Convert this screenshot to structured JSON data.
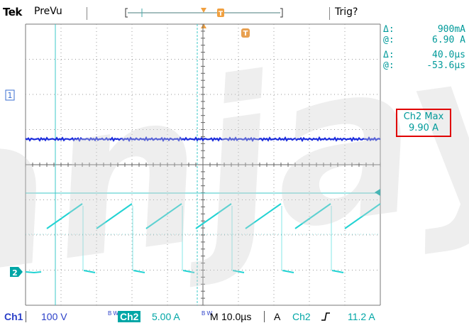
{
  "header": {
    "brand": "Tek",
    "mode": "PreVu",
    "trigger_status": "Trig?"
  },
  "cursor_readout": {
    "rows": [
      {
        "label": "Δ:",
        "value": "900mA"
      },
      {
        "label": "@:",
        "value": "6.90 A"
      },
      {
        "label": "Δ:",
        "value": "40.0µs"
      },
      {
        "label": "@:",
        "value": "-53.6µs"
      }
    ]
  },
  "measurement": {
    "title": "Ch2 Max",
    "value": "9.90 A"
  },
  "markers": {
    "ch1": "1",
    "ch2": "2",
    "trigger_position": "T"
  },
  "status_bar": {
    "ch1_label": "Ch1",
    "ch1_scale": "100 V",
    "ch1_bw": "B W",
    "ch2_label": "Ch2",
    "ch2_scale": "5.00 A",
    "ch2_bw": "B W",
    "timebase_label": "M",
    "timebase": "10.0µs",
    "trigger_source_prefix": "A",
    "trigger_source": "Ch2",
    "trigger_slope_icon": "rising-edge-icon",
    "trigger_level": "11.2 A"
  },
  "colors": {
    "ch1_trace": "#1a2bdc",
    "ch2_trace": "#22d3d3",
    "readout": "#009a9a",
    "highlight_box": "#e00000",
    "watermark": "#d8d8d8"
  },
  "watermark_text": "anjay"
}
